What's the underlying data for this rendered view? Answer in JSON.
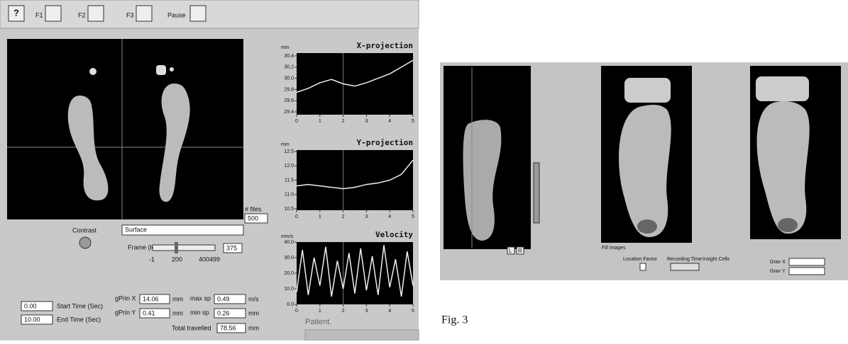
{
  "toolbar": {
    "help": "?",
    "f1": "F1",
    "f2": "F2",
    "f3": "F3",
    "pause": "Pause"
  },
  "plots": [
    {
      "title": "X-projection",
      "unit": "mm",
      "ylim": [
        29.35,
        30.45
      ],
      "yticks": [
        30.4,
        {
          "value": 30.2,
          "label": "30.2"
        },
        {
          "value": 30,
          "label": "30.0"
        },
        29.8,
        29.6,
        29.4
      ],
      "xlim": [
        0,
        5
      ],
      "xticks": [
        0,
        1,
        2,
        3,
        4,
        5
      ],
      "t": [
        0,
        0.5,
        1,
        1.5,
        2,
        2.5,
        3,
        3.5,
        4,
        4.5,
        5
      ],
      "v": [
        29.75,
        29.82,
        29.92,
        29.98,
        29.9,
        29.86,
        29.92,
        30.0,
        30.08,
        30.2,
        30.32
      ]
    },
    {
      "title": "Y-projection",
      "unit": "mm",
      "ylim": [
        10.45,
        12.55
      ],
      "yticks": [
        12.5,
        {
          "value": 12,
          "label": "12.0"
        },
        11.5,
        {
          "value": 11,
          "label": "11.0"
        },
        10.5
      ],
      "xlim": [
        0,
        5
      ],
      "xticks": [
        0,
        1,
        2,
        3,
        4,
        5
      ],
      "t": [
        0,
        0.5,
        1,
        1.5,
        2,
        2.5,
        3,
        3.5,
        4,
        4.5,
        5
      ],
      "v": [
        11.3,
        11.35,
        11.3,
        11.25,
        11.2,
        11.25,
        11.35,
        11.4,
        11.5,
        11.7,
        12.2
      ]
    },
    {
      "title": "Velocity",
      "unit": "mm/s",
      "ylim": [
        0,
        40
      ],
      "yticks": [
        {
          "value": 40,
          "label": "40.0"
        },
        {
          "value": 30,
          "label": "30.0"
        },
        {
          "value": 20,
          "label": "20.0"
        },
        {
          "value": 10,
          "label": "10.0"
        },
        {
          "value": 0,
          "label": "0.0"
        }
      ],
      "xlim": [
        0,
        5
      ],
      "xticks": [
        0,
        1,
        2,
        3,
        4,
        5
      ],
      "t": [
        0,
        0.25,
        0.5,
        0.75,
        1,
        1.25,
        1.5,
        1.75,
        2,
        2.25,
        2.5,
        2.75,
        3,
        3.25,
        3.5,
        3.75,
        4,
        4.25,
        4.5,
        4.75,
        5
      ],
      "v": [
        8,
        35,
        6,
        30,
        12,
        37,
        5,
        28,
        10,
        33,
        7,
        36,
        9,
        31,
        6,
        38,
        11,
        29,
        5,
        34,
        12
      ]
    }
  ],
  "controls": {
    "files_label": "# files",
    "files": "500",
    "contrast": "Contrast",
    "surface": "Surface",
    "frame_label": "Frame (ld)",
    "frame": "375",
    "frame_min": "-1",
    "frame_mid": "200",
    "frame_max": "400499",
    "start_time": "0.00",
    "start_label": "Start Time (Sec)",
    "end_time": "10.00",
    "end_label": "End Time (Sec)",
    "gx_label": "gPrin X",
    "gx": "14.06",
    "gy_label": "gPrin Y",
    "gy": "0.41",
    "maxsp_label": "max sp",
    "maxsp": "0.49",
    "minsp_label": "min sp",
    "minsp": "0.26",
    "unit_mm": "mm",
    "unit_ms": "m/s",
    "total_label": "Total travelled",
    "total": "78.56",
    "patient": "Patient."
  },
  "right": {
    "location": "Location Factor",
    "recording": "Recording Time",
    "insight": "Insight Cells",
    "gravx": "Grav X",
    "gravy": "Grav Y",
    "fill": "Fill images",
    "lr_l": "L",
    "lr_r": "R"
  },
  "caption": "Fig. 3"
}
